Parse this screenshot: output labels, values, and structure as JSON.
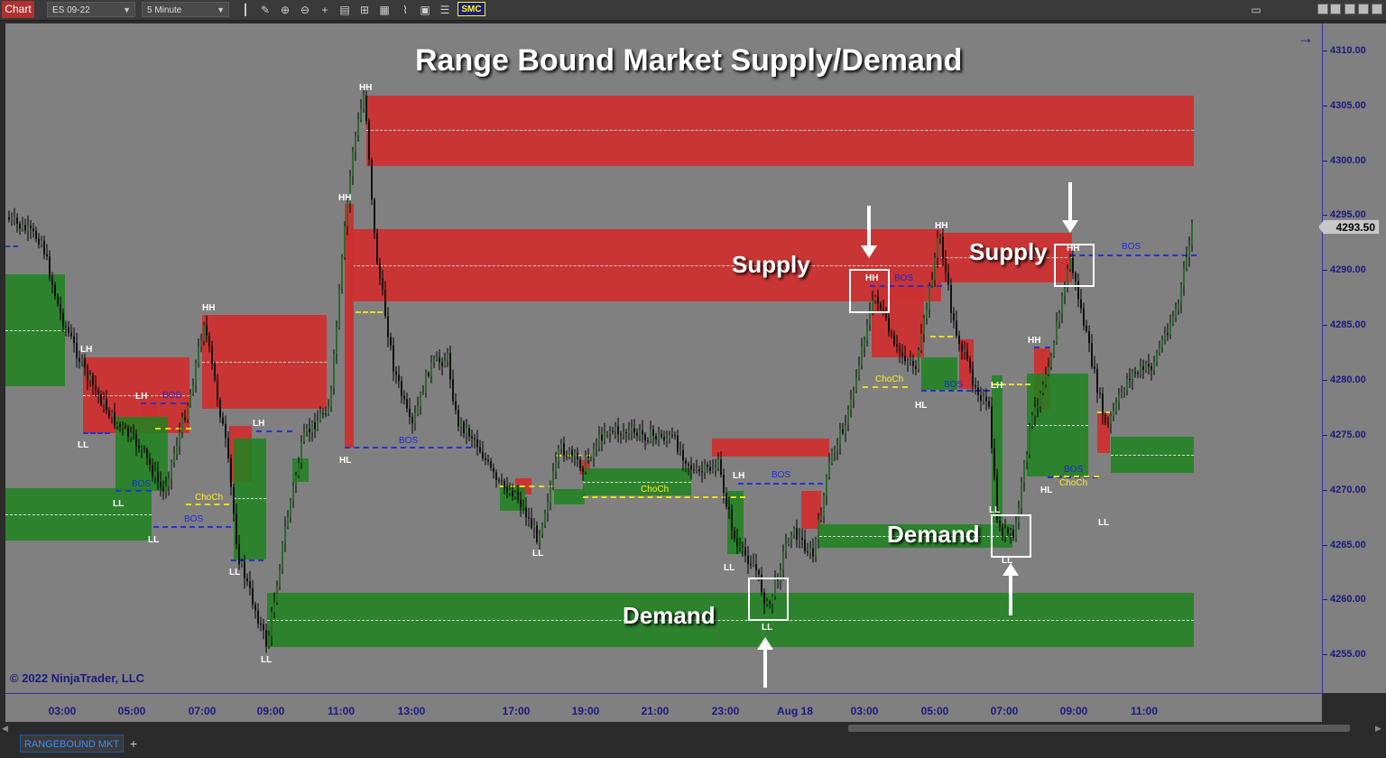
{
  "toolbar": {
    "chart_label": "Chart",
    "instrument": "ES 09-22",
    "interval": "5 Minute",
    "smc_label": "SMC"
  },
  "chart": {
    "title": "Range Bound Market Supply/Demand",
    "copyright": "© 2022 NinjaTrader, LLC",
    "current_price": "4293.50",
    "price_labels": [
      "4310.00",
      "4305.00",
      "4300.00",
      "4295.00",
      "4290.00",
      "4285.00",
      "4280.00",
      "4275.00",
      "4270.00",
      "4265.00",
      "4260.00",
      "4255.00"
    ],
    "time_labels": [
      "03:00",
      "05:00",
      "07:00",
      "09:00",
      "11:00",
      "13:00",
      "17:00",
      "19:00",
      "21:00",
      "23:00",
      "Aug 18",
      "03:00",
      "05:00",
      "07:00",
      "09:00",
      "11:00"
    ],
    "annotations": {
      "supply_1": "Supply",
      "supply_2": "Supply",
      "demand_1": "Demand",
      "demand_2": "Demand"
    },
    "markers": {
      "hh": "HH",
      "lh": "LH",
      "ll": "LL",
      "hl": "HL",
      "bos": "BOS",
      "choch": "ChoCh"
    },
    "colors": {
      "supply": "#cc3030",
      "demand": "#1e821e",
      "bos": "#2233cc",
      "choch": "#e8e010"
    }
  },
  "tabs": {
    "active": "RANGEBOUND MKT",
    "add": "+"
  },
  "candles_seed": 4293.5
}
